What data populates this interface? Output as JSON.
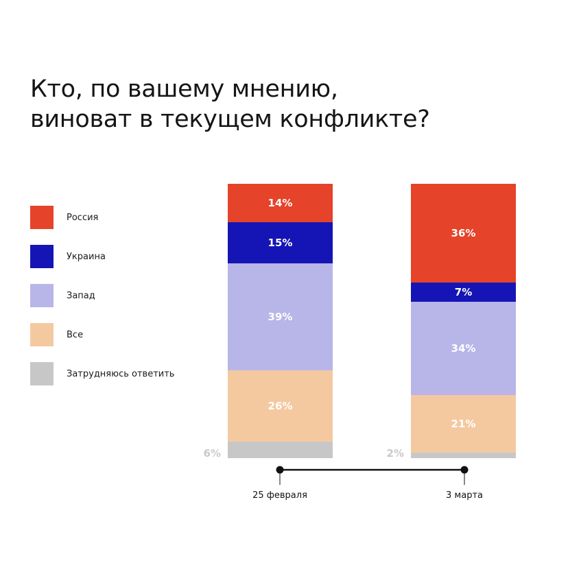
{
  "title_lines": [
    "Кто, по вашему мнению,",
    "виноват в текущем конфликте?"
  ],
  "legend": [
    {
      "label": "Россия",
      "color": "#e5432a"
    },
    {
      "label": "Украина",
      "color": "#1515b5"
    },
    {
      "label": "Запад",
      "color": "#b8b5e8"
    },
    {
      "label": "Все",
      "color": "#f5c9a0"
    },
    {
      "label": "Затрудняюсь ответить",
      "color": "#c7c7c7"
    }
  ],
  "chart_data": {
    "type": "bar",
    "stacked": true,
    "categories": [
      "25 февраля",
      "3 марта"
    ],
    "series": [
      {
        "name": "Россия",
        "values": [
          14,
          36
        ],
        "color": "#e5432a",
        "labels": [
          "14%",
          "36%"
        ]
      },
      {
        "name": "Украина",
        "values": [
          15,
          7
        ],
        "color": "#1515b5",
        "labels": [
          "15%",
          "7%"
        ]
      },
      {
        "name": "Запад",
        "values": [
          39,
          34
        ],
        "color": "#b8b5e8",
        "labels": [
          "39%",
          "34%"
        ]
      },
      {
        "name": "Все",
        "values": [
          26,
          21
        ],
        "color": "#f5c9a0",
        "labels": [
          "26%",
          "21%"
        ]
      },
      {
        "name": "Затрудняюсь ответить",
        "values": [
          6,
          2
        ],
        "color": "#c7c7c7",
        "labels": [
          "6%",
          "2%"
        ]
      }
    ],
    "ylim": [
      0,
      100
    ],
    "legend_position": "left"
  }
}
